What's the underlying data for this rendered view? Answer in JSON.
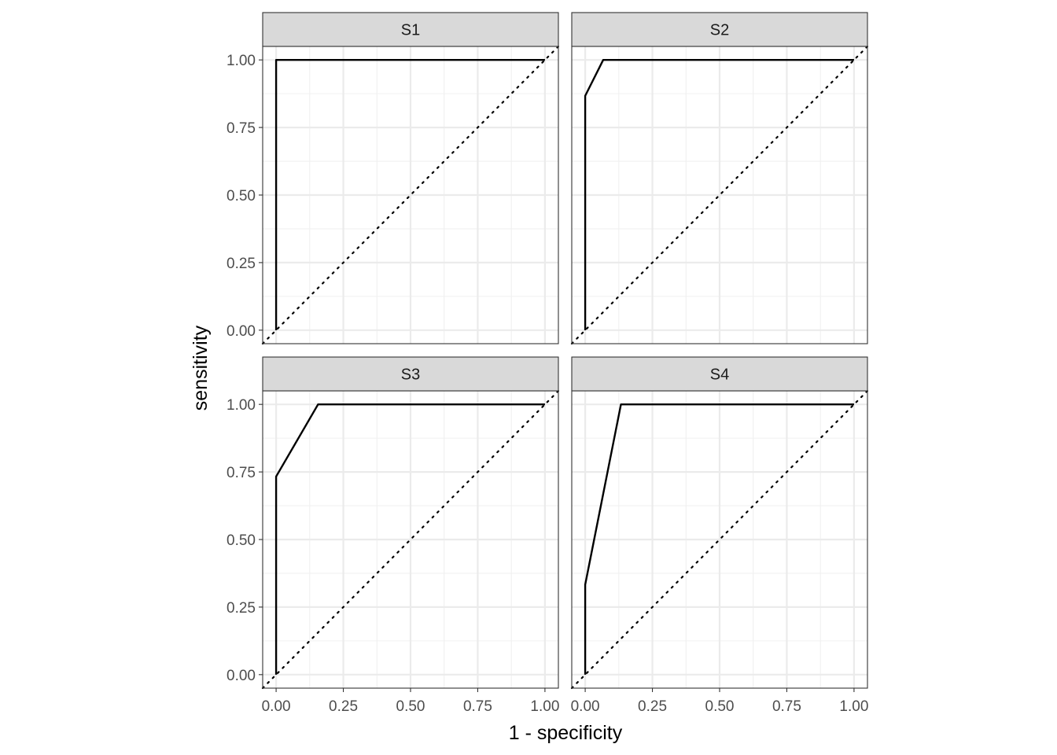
{
  "chart_data": {
    "type": "line",
    "xlabel": "1 - specificity",
    "ylabel": "sensitivity",
    "xlim": [
      -0.05,
      1.05
    ],
    "ylim": [
      -0.05,
      1.05
    ],
    "x_ticks": [
      0,
      0.25,
      0.5,
      0.75,
      1
    ],
    "x_tick_labels": [
      "0.00",
      "0.25",
      "0.50",
      "0.75",
      "1.00"
    ],
    "y_ticks": [
      0,
      0.25,
      0.5,
      0.75,
      1
    ],
    "y_tick_labels": [
      "0.00",
      "0.25",
      "0.50",
      "0.75",
      "1.00"
    ],
    "grid": true,
    "reference_line": "diagonal (dotted)",
    "line_color": "#000000",
    "strip_fill": "#d9d9d9",
    "facet_layout": "2x2",
    "panels": [
      {
        "label": "S1",
        "x": [
          0,
          0,
          1
        ],
        "y": [
          0,
          1,
          1
        ]
      },
      {
        "label": "S2",
        "x": [
          0,
          0,
          0.067,
          1
        ],
        "y": [
          0,
          0.867,
          1,
          1
        ]
      },
      {
        "label": "S3",
        "x": [
          0,
          0,
          0.156,
          1
        ],
        "y": [
          0,
          0.733,
          1,
          1
        ]
      },
      {
        "label": "S4",
        "x": [
          0,
          0,
          0.133,
          1
        ],
        "y": [
          0,
          0.333,
          1,
          1
        ]
      }
    ]
  }
}
